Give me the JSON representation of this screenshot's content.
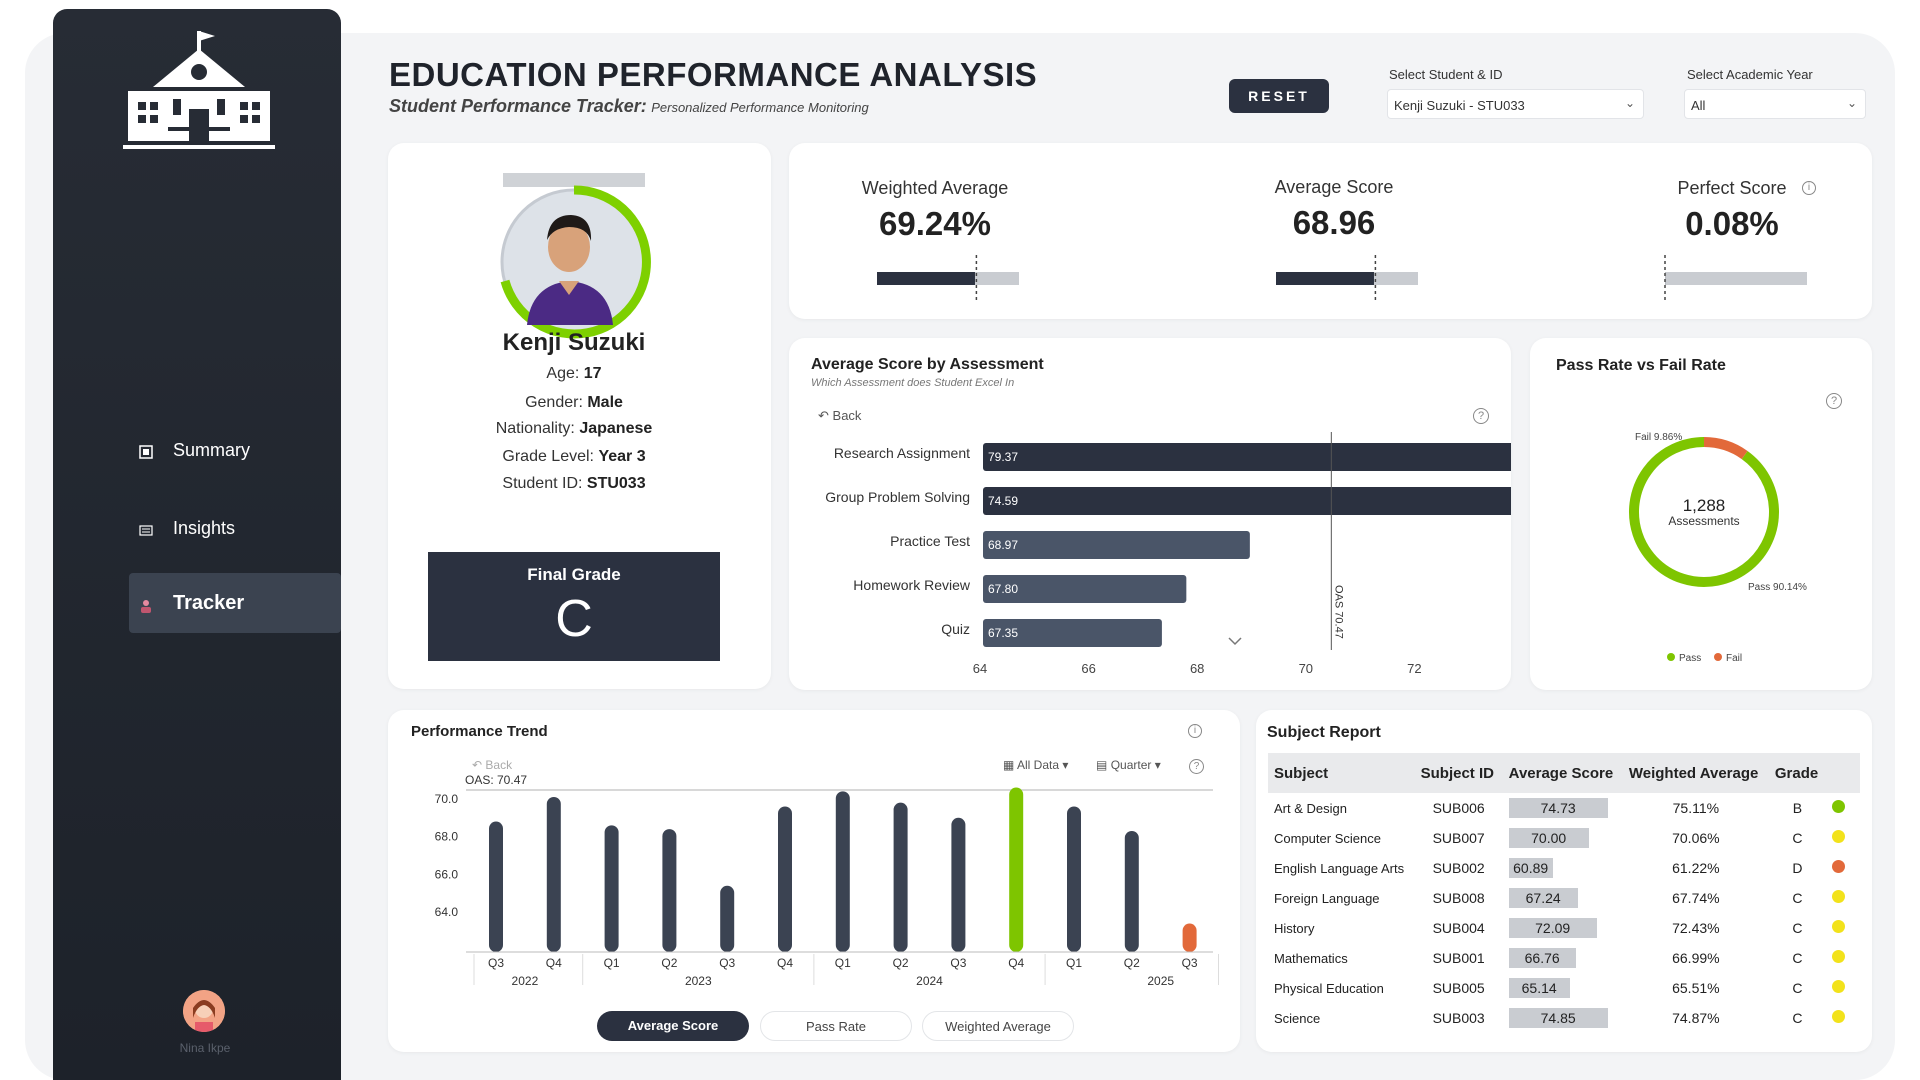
{
  "header": {
    "title": "EDUCATION PERFORMANCE ANALYSIS",
    "subtitle_bold": "Student Performance Tracker:",
    "subtitle_rest": "Personalized Performance Monitoring",
    "reset_label": "RESET",
    "student_select_label": "Select Student & ID",
    "student_select_value": "Kenji Suzuki - STU033",
    "year_select_label": "Select Academic Year",
    "year_select_value": "All"
  },
  "sidebar": {
    "items": [
      {
        "label": "Summary",
        "icon": "summary-icon"
      },
      {
        "label": "Insights",
        "icon": "insights-icon"
      },
      {
        "label": "Tracker",
        "icon": "tracker-icon"
      }
    ],
    "user_name": "Nina Ikpe"
  },
  "profile": {
    "name": "Kenji Suzuki",
    "age_label": "Age:",
    "age": "17",
    "gender_label": "Gender:",
    "gender": "Male",
    "nationality_label": "Nationality:",
    "nationality": "Japanese",
    "grade_level_label": "Grade Level:",
    "grade_level": "Year 3",
    "student_id_label": "Student ID:",
    "student_id": "STU033",
    "final_grade_label": "Final Grade",
    "final_grade": "C"
  },
  "kpis": [
    {
      "label": "Weighted Average",
      "value": "69.24%",
      "fill": 0.69,
      "target": 0.7
    },
    {
      "label": "Average Score",
      "value": "68.96",
      "fill": 0.69,
      "target": 0.7
    },
    {
      "label": "Perfect Score",
      "value": "0.08%",
      "fill": 0.0008,
      "target": 0.0
    }
  ],
  "assessment_chart": {
    "title": "Average Score by Assessment",
    "subtitle": "Which Assessment does Student Excel In",
    "back_label": "Back",
    "oas_label": "OAS 70.47",
    "color": "#2b3140"
  },
  "pass_fail": {
    "title": "Pass Rate vs Fail Rate",
    "center_value": "1,288",
    "center_label": "Assessments",
    "fail_label": "Fail 9.86%",
    "pass_label": "Pass 90.14%",
    "legend_pass": "Pass",
    "legend_fail": "Fail",
    "pass_color": "#7ec500",
    "fail_color": "#e2693a"
  },
  "trend": {
    "title": "Performance Trend",
    "back_label": "Back",
    "oas_label": "OAS: 70.47",
    "all_data_label": "All Data",
    "quarter_label": "Quarter",
    "buttons": [
      "Average Score",
      "Pass Rate",
      "Weighted Average"
    ],
    "years": [
      "2022",
      "2023",
      "2024",
      "2025"
    ]
  },
  "subject_report": {
    "title": "Subject Report",
    "columns": [
      "Subject",
      "Subject ID",
      "Average Score",
      "Weighted Average",
      "Grade"
    ],
    "rows": [
      {
        "subject": "Art & Design",
        "id": "SUB006",
        "avg": "74.73",
        "wavg": "75.11%",
        "grade": "B",
        "dot": "#7ec500"
      },
      {
        "subject": "Computer Science",
        "id": "SUB007",
        "avg": "70.00",
        "wavg": "70.06%",
        "grade": "C",
        "dot": "#f2e21b"
      },
      {
        "subject": "English Language Arts",
        "id": "SUB002",
        "avg": "60.89",
        "wavg": "61.22%",
        "grade": "D",
        "dot": "#e2693a"
      },
      {
        "subject": "Foreign Language",
        "id": "SUB008",
        "avg": "67.24",
        "wavg": "67.74%",
        "grade": "C",
        "dot": "#f2e21b"
      },
      {
        "subject": "History",
        "id": "SUB004",
        "avg": "72.09",
        "wavg": "72.43%",
        "grade": "C",
        "dot": "#f2e21b"
      },
      {
        "subject": "Mathematics",
        "id": "SUB001",
        "avg": "66.76",
        "wavg": "66.99%",
        "grade": "C",
        "dot": "#f2e21b"
      },
      {
        "subject": "Physical Education",
        "id": "SUB005",
        "avg": "65.14",
        "wavg": "65.51%",
        "grade": "C",
        "dot": "#f2e21b"
      },
      {
        "subject": "Science",
        "id": "SUB003",
        "avg": "74.85",
        "wavg": "74.87%",
        "grade": "C",
        "dot": "#f2e21b"
      }
    ]
  },
  "chart_data": [
    {
      "type": "bar",
      "orientation": "horizontal",
      "title": "Average Score by Assessment",
      "categories": [
        "Research Assignment",
        "Group Problem Solving",
        "Practice Test",
        "Homework Review",
        "Quiz"
      ],
      "values": [
        79.37,
        74.59,
        68.97,
        67.8,
        67.35
      ],
      "xlim": [
        64,
        82
      ],
      "xticks": [
        64,
        66,
        68,
        70,
        72,
        74,
        76,
        78,
        80,
        82
      ],
      "reference_line": 70.47
    },
    {
      "type": "pie",
      "title": "Pass Rate vs Fail Rate",
      "categories": [
        "Pass",
        "Fail"
      ],
      "values": [
        90.14,
        9.86
      ]
    },
    {
      "type": "bar",
      "title": "Performance Trend",
      "categories": [
        "Q3",
        "Q4",
        "Q1",
        "Q2",
        "Q3",
        "Q4",
        "Q1",
        "Q2",
        "Q3",
        "Q4",
        "Q1",
        "Q2",
        "Q3"
      ],
      "groups": [
        "2022",
        "2022",
        "2023",
        "2023",
        "2023",
        "2023",
        "2024",
        "2024",
        "2024",
        "2024",
        "2025",
        "2025",
        "2025"
      ],
      "values": [
        68.8,
        70.1,
        68.6,
        68.4,
        65.4,
        69.6,
        70.4,
        69.8,
        69.0,
        70.6,
        69.6,
        68.3,
        63.4
      ],
      "highlight": {
        "max_index": 9,
        "min_index": 12
      },
      "ylim": [
        62,
        71
      ],
      "yticks": [
        "64.0",
        "66.0",
        "68.0",
        "70.0"
      ],
      "reference_line": 70.47,
      "grid": false
    }
  ]
}
